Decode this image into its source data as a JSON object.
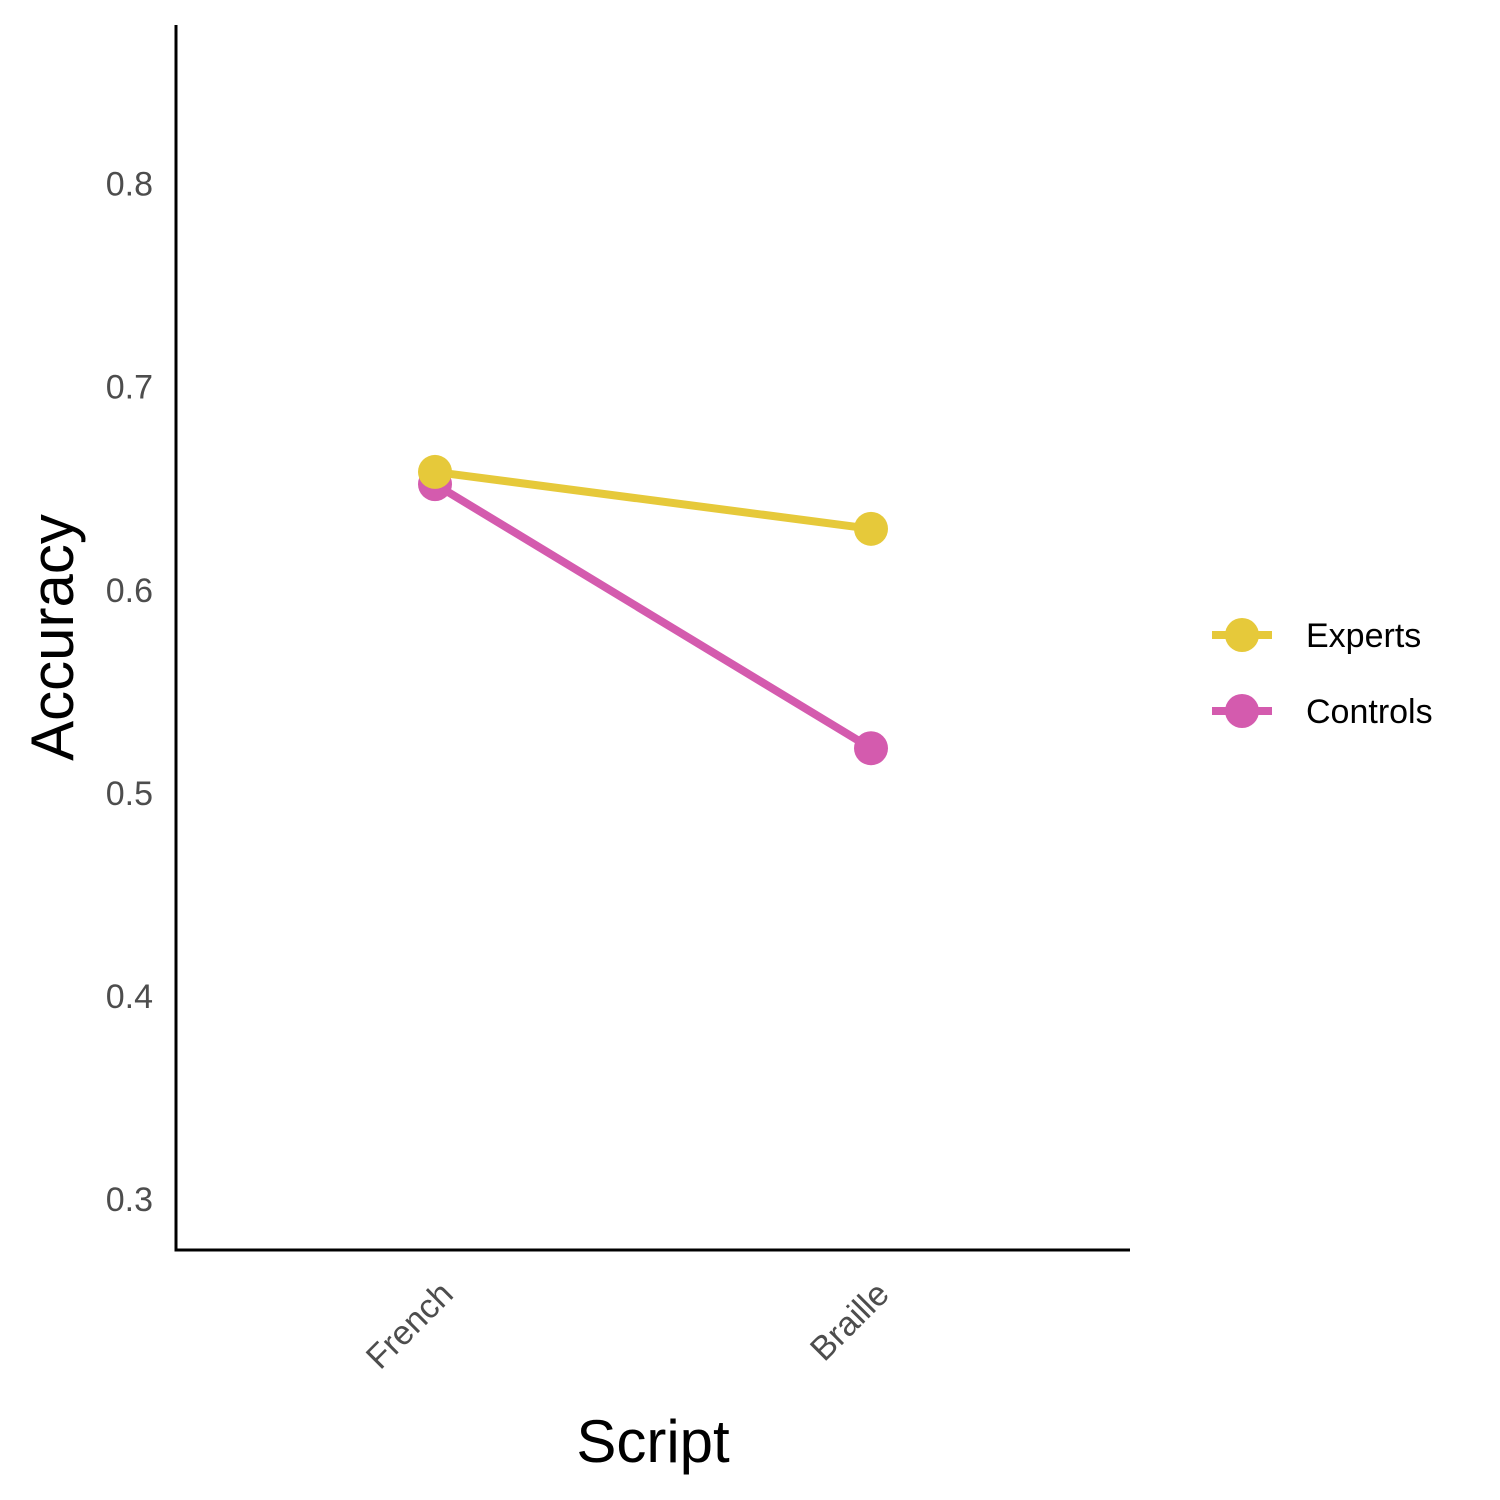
{
  "chart_data": {
    "type": "line",
    "categories": [
      "French",
      "Braille"
    ],
    "series": [
      {
        "name": "Experts",
        "values": [
          0.658,
          0.63
        ],
        "color": "#E6C93A"
      },
      {
        "name": "Controls",
        "values": [
          0.652,
          0.522
        ],
        "color": "#D45BAE"
      }
    ],
    "xlabel": "Script",
    "ylabel": "Accuracy",
    "ylim": [
      0.275,
      0.878
    ],
    "yticks": [
      0.3,
      0.4,
      0.5,
      0.6,
      0.7,
      0.8
    ],
    "ytick_labels": [
      "0.3",
      "0.4",
      "0.5",
      "0.6",
      "0.7",
      "0.8"
    ],
    "grid": false,
    "legend_position": "right"
  }
}
